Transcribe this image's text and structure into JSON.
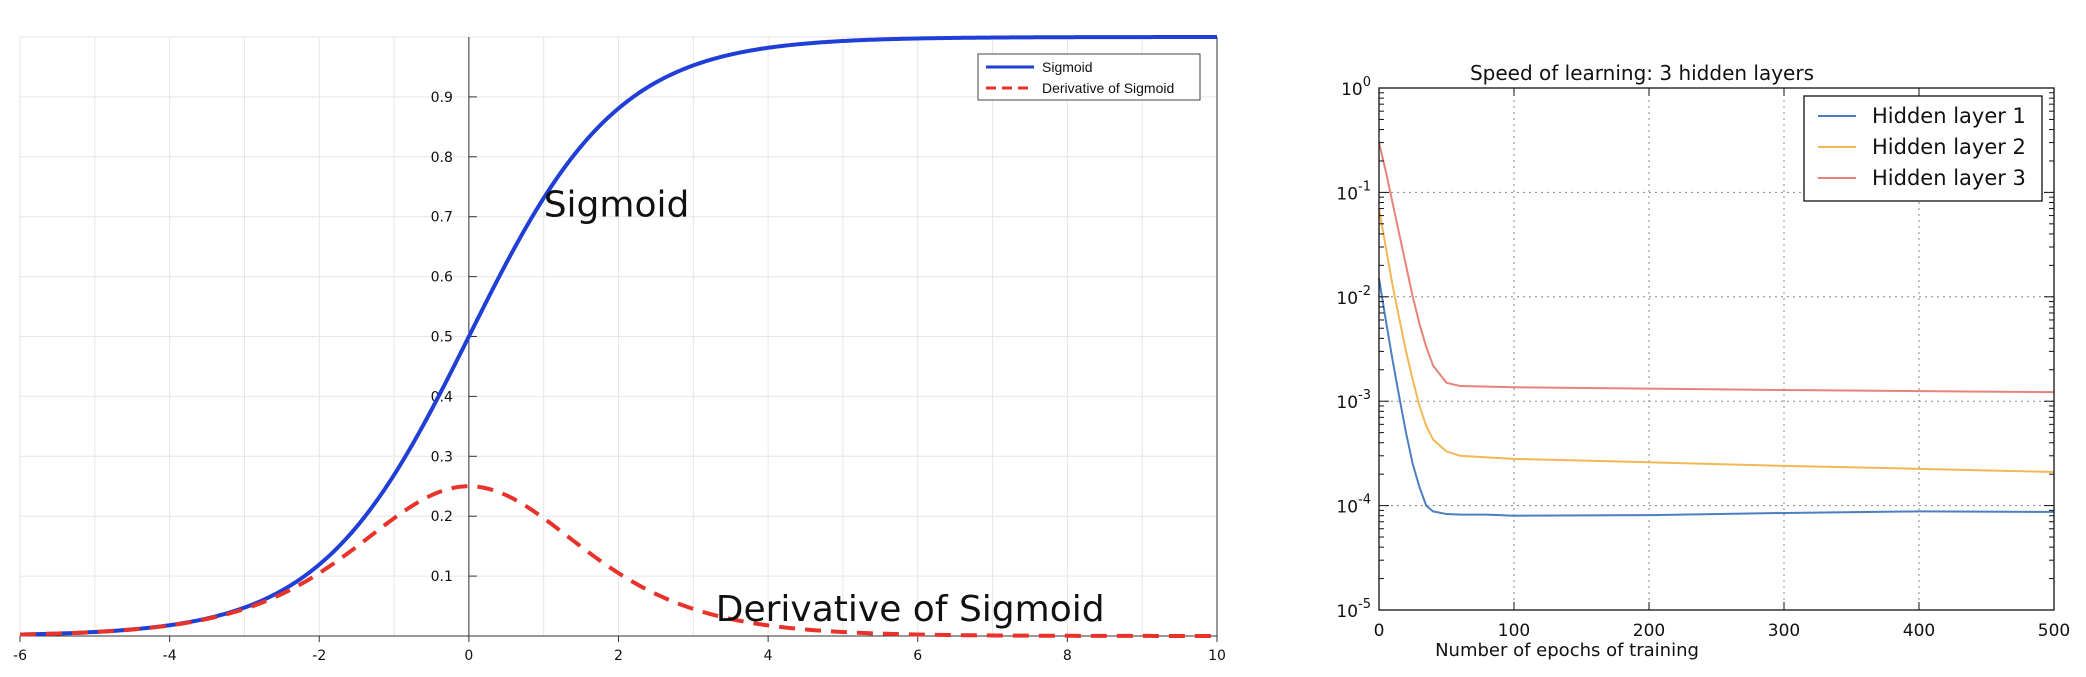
{
  "chart_data": [
    {
      "type": "line",
      "title": "",
      "xlabel": "",
      "ylabel": "",
      "xlim": [
        -6,
        10
      ],
      "ylim": [
        0,
        1
      ],
      "xticks": [
        -6,
        -4,
        -2,
        0,
        2,
        4,
        6,
        8,
        10
      ],
      "yticks": [
        0.1,
        0.2,
        0.3,
        0.4,
        0.5,
        0.6,
        0.7,
        0.8,
        0.9
      ],
      "grid": true,
      "legend_position": "top-right",
      "series": [
        {
          "name": "Sigmoid",
          "color": "#1f3fd6",
          "style": "solid",
          "x": [
            -6,
            -5,
            -4,
            -3,
            -2,
            -1.5,
            -1,
            -0.5,
            0,
            0.5,
            1,
            1.5,
            2,
            3,
            4,
            5,
            6,
            7,
            8,
            9,
            10
          ],
          "y": [
            0.0025,
            0.0067,
            0.018,
            0.047,
            0.119,
            0.182,
            0.269,
            0.378,
            0.5,
            0.622,
            0.731,
            0.818,
            0.881,
            0.953,
            0.982,
            0.993,
            0.9975,
            0.9991,
            0.9997,
            0.9999,
            1.0
          ]
        },
        {
          "name": "Derivative of Sigmoid",
          "color": "#e8322a",
          "style": "dashed",
          "x": [
            -6,
            -5,
            -4,
            -3,
            -2,
            -1.5,
            -1,
            -0.5,
            0,
            0.5,
            1,
            1.5,
            2,
            3,
            4,
            5,
            6,
            7,
            8,
            9,
            10
          ],
          "y": [
            0.0025,
            0.0066,
            0.0177,
            0.045,
            0.105,
            0.149,
            0.197,
            0.235,
            0.25,
            0.235,
            0.197,
            0.149,
            0.105,
            0.045,
            0.0177,
            0.0066,
            0.0025,
            0.0009,
            0.0003,
            0.0001,
            5e-05
          ]
        }
      ],
      "annotations": [
        {
          "text": "Sigmoid",
          "x": 1.0,
          "y": 0.7
        },
        {
          "text": "Derivative of Sigmoid",
          "x": 3.3,
          "y": 0.025
        }
      ]
    },
    {
      "type": "line",
      "title": "Speed of learning: 3 hidden layers",
      "xlabel": "Number of epochs of training",
      "ylabel": "",
      "xlim": [
        0,
        500
      ],
      "ylim": [
        1e-05,
        1
      ],
      "yscale": "log",
      "xticks": [
        0,
        100,
        200,
        300,
        400,
        500
      ],
      "ytick_exponents": [
        0,
        -1,
        -2,
        -3,
        -4,
        -5
      ],
      "ytick_base": "10",
      "grid": true,
      "legend_position": "top-right",
      "series": [
        {
          "name": "Hidden layer 1",
          "color": "#4a7fc0",
          "x": [
            0,
            5,
            10,
            15,
            20,
            25,
            30,
            35,
            40,
            50,
            60,
            80,
            100,
            200,
            300,
            400,
            500
          ],
          "y": [
            0.015,
            0.006,
            0.0025,
            0.0011,
            0.0005,
            0.00025,
            0.00015,
            0.0001,
            8.8e-05,
            8.3e-05,
            8.2e-05,
            8.2e-05,
            8e-05,
            8.1e-05,
            8.5e-05,
            8.8e-05,
            8.7e-05
          ]
        },
        {
          "name": "Hidden layer 2",
          "color": "#f3b855",
          "x": [
            0,
            5,
            10,
            15,
            20,
            25,
            30,
            35,
            40,
            50,
            60,
            80,
            100,
            200,
            300,
            400,
            500
          ],
          "y": [
            0.07,
            0.03,
            0.013,
            0.0062,
            0.003,
            0.0016,
            0.0009,
            0.00058,
            0.00043,
            0.00033,
            0.0003,
            0.00029,
            0.00028,
            0.00026,
            0.00024,
            0.000225,
            0.00021
          ]
        },
        {
          "name": "Hidden layer 3",
          "color": "#e8827a",
          "x": [
            0,
            5,
            10,
            15,
            20,
            25,
            30,
            35,
            40,
            50,
            60,
            80,
            100,
            200,
            300,
            400,
            500
          ],
          "y": [
            0.3,
            0.16,
            0.08,
            0.04,
            0.02,
            0.01,
            0.0055,
            0.0033,
            0.0022,
            0.0015,
            0.0014,
            0.00138,
            0.00136,
            0.00132,
            0.00128,
            0.00125,
            0.00122
          ]
        }
      ]
    }
  ]
}
